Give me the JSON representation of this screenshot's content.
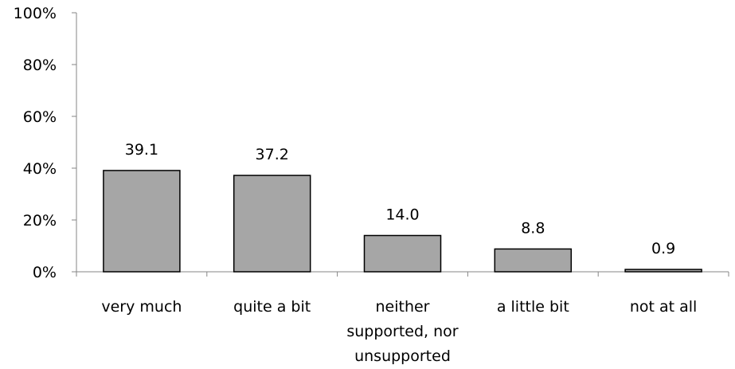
{
  "chart_data": {
    "type": "bar",
    "categories": [
      "very much",
      "quite a bit",
      "neither supported, nor unsupported",
      "a little bit",
      "not at all"
    ],
    "category_label_lines": [
      [
        "very much"
      ],
      [
        "quite a bit"
      ],
      [
        "neither",
        "supported, nor",
        "unsupported"
      ],
      [
        "a little bit"
      ],
      [
        "not at all"
      ]
    ],
    "values": [
      39.1,
      37.2,
      14.0,
      8.8,
      0.9
    ],
    "value_labels": [
      "39.1",
      "37.2",
      "14.0",
      "8.8",
      "0.9"
    ],
    "ylim": [
      0,
      100
    ],
    "y_ticks": [
      0,
      20,
      40,
      60,
      80,
      100
    ],
    "y_tick_labels": [
      "0%",
      "20%",
      "40%",
      "60%",
      "80%",
      "100%"
    ],
    "title": "",
    "xlabel": "",
    "ylabel": "",
    "grid": false,
    "legend": "none",
    "bar_color": "#a6a6a6",
    "bar_edge_color": "#000000",
    "axis_color": "#868686"
  }
}
